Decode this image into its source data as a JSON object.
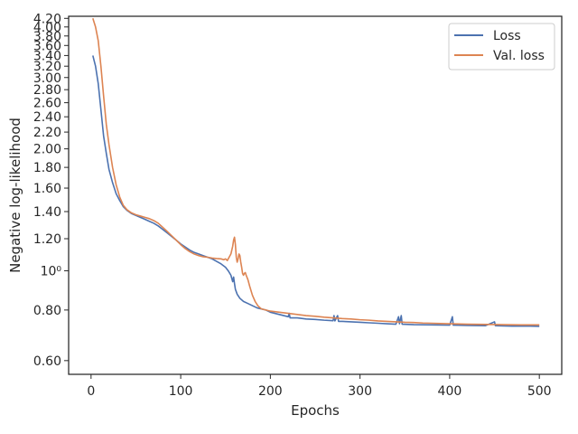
{
  "chart_data": {
    "type": "line",
    "title": "",
    "xlabel": "Epochs",
    "ylabel": "Negative log-likelihood",
    "y_scale": "log",
    "xlim": [
      -25,
      525
    ],
    "ylim": [
      0.555,
      4.25
    ],
    "grid": false,
    "legend_position": "top-right",
    "x_ticks": [
      0,
      100,
      200,
      300,
      400,
      500
    ],
    "y_ticks": [
      {
        "value": 0.6,
        "label": "0.60"
      },
      {
        "value": 0.8,
        "label": "0.80"
      },
      {
        "value": 1.0,
        "label": "10⁰"
      },
      {
        "value": 1.2,
        "label": "1.20"
      },
      {
        "value": 1.4,
        "label": "1.40"
      },
      {
        "value": 1.6,
        "label": "1.60"
      },
      {
        "value": 1.8,
        "label": "1.80"
      },
      {
        "value": 2.0,
        "label": "2.00"
      },
      {
        "value": 2.2,
        "label": "2.20"
      },
      {
        "value": 2.4,
        "label": "2.40"
      },
      {
        "value": 2.6,
        "label": "2.60"
      },
      {
        "value": 2.8,
        "label": "2.80"
      },
      {
        "value": 3.0,
        "label": "3.00"
      },
      {
        "value": 3.2,
        "label": "3.20"
      },
      {
        "value": 3.4,
        "label": "3.40"
      },
      {
        "value": 3.6,
        "label": "3.60"
      },
      {
        "value": 3.8,
        "label": "3.80"
      },
      {
        "value": 4.0,
        "label": "4.00"
      },
      {
        "value": 4.2,
        "label": "4.20"
      }
    ],
    "series": [
      {
        "name": "Loss",
        "color": "#4c72b0",
        "points": [
          [
            2,
            3.4
          ],
          [
            5,
            3.2
          ],
          [
            8,
            2.9
          ],
          [
            11,
            2.5
          ],
          [
            14,
            2.15
          ],
          [
            17,
            1.95
          ],
          [
            20,
            1.78
          ],
          [
            24,
            1.65
          ],
          [
            28,
            1.55
          ],
          [
            32,
            1.49
          ],
          [
            36,
            1.44
          ],
          [
            40,
            1.41
          ],
          [
            45,
            1.385
          ],
          [
            50,
            1.37
          ],
          [
            55,
            1.355
          ],
          [
            60,
            1.34
          ],
          [
            65,
            1.325
          ],
          [
            70,
            1.31
          ],
          [
            75,
            1.29
          ],
          [
            80,
            1.265
          ],
          [
            85,
            1.24
          ],
          [
            90,
            1.215
          ],
          [
            95,
            1.19
          ],
          [
            100,
            1.165
          ],
          [
            105,
            1.145
          ],
          [
            110,
            1.125
          ],
          [
            115,
            1.11
          ],
          [
            120,
            1.1
          ],
          [
            125,
            1.09
          ],
          [
            130,
            1.08
          ],
          [
            135,
            1.07
          ],
          [
            140,
            1.055
          ],
          [
            145,
            1.04
          ],
          [
            150,
            1.02
          ],
          [
            153,
            1.0
          ],
          [
            156,
            0.975
          ],
          [
            158,
            0.94
          ],
          [
            159,
            0.965
          ],
          [
            160,
            0.93
          ],
          [
            161,
            0.9
          ],
          [
            163,
            0.875
          ],
          [
            166,
            0.855
          ],
          [
            170,
            0.84
          ],
          [
            175,
            0.83
          ],
          [
            180,
            0.82
          ],
          [
            185,
            0.81
          ],
          [
            190,
            0.805
          ],
          [
            195,
            0.8
          ],
          [
            200,
            0.79
          ],
          [
            205,
            0.785
          ],
          [
            210,
            0.78
          ],
          [
            215,
            0.775
          ],
          [
            220,
            0.77
          ],
          [
            221,
            0.785
          ],
          [
            222,
            0.765
          ],
          [
            230,
            0.765
          ],
          [
            240,
            0.76
          ],
          [
            250,
            0.758
          ],
          [
            260,
            0.755
          ],
          [
            270,
            0.753
          ],
          [
            271,
            0.775
          ],
          [
            272,
            0.752
          ],
          [
            275,
            0.775
          ],
          [
            276,
            0.75
          ],
          [
            280,
            0.75
          ],
          [
            290,
            0.748
          ],
          [
            300,
            0.746
          ],
          [
            310,
            0.744
          ],
          [
            320,
            0.742
          ],
          [
            330,
            0.74
          ],
          [
            340,
            0.738
          ],
          [
            343,
            0.77
          ],
          [
            344,
            0.74
          ],
          [
            346,
            0.775
          ],
          [
            347,
            0.738
          ],
          [
            360,
            0.736
          ],
          [
            380,
            0.735
          ],
          [
            400,
            0.734
          ],
          [
            403,
            0.77
          ],
          [
            404,
            0.734
          ],
          [
            420,
            0.733
          ],
          [
            440,
            0.732
          ],
          [
            450,
            0.748
          ],
          [
            451,
            0.732
          ],
          [
            460,
            0.731
          ],
          [
            470,
            0.73
          ],
          [
            480,
            0.73
          ],
          [
            490,
            0.73
          ],
          [
            500,
            0.729
          ]
        ]
      },
      {
        "name": "Val. loss",
        "color": "#dd8452",
        "points": [
          [
            2,
            4.2
          ],
          [
            5,
            4.0
          ],
          [
            8,
            3.7
          ],
          [
            11,
            3.2
          ],
          [
            14,
            2.7
          ],
          [
            17,
            2.3
          ],
          [
            20,
            2.05
          ],
          [
            24,
            1.8
          ],
          [
            28,
            1.63
          ],
          [
            32,
            1.52
          ],
          [
            36,
            1.45
          ],
          [
            40,
            1.415
          ],
          [
            45,
            1.39
          ],
          [
            50,
            1.375
          ],
          [
            55,
            1.365
          ],
          [
            60,
            1.355
          ],
          [
            65,
            1.345
          ],
          [
            70,
            1.33
          ],
          [
            75,
            1.31
          ],
          [
            80,
            1.28
          ],
          [
            85,
            1.25
          ],
          [
            90,
            1.22
          ],
          [
            95,
            1.19
          ],
          [
            100,
            1.16
          ],
          [
            105,
            1.135
          ],
          [
            110,
            1.115
          ],
          [
            115,
            1.1
          ],
          [
            120,
            1.09
          ],
          [
            125,
            1.083
          ],
          [
            130,
            1.08
          ],
          [
            135,
            1.075
          ],
          [
            140,
            1.072
          ],
          [
            145,
            1.07
          ],
          [
            148,
            1.065
          ],
          [
            150,
            1.07
          ],
          [
            152,
            1.06
          ],
          [
            154,
            1.08
          ],
          [
            156,
            1.1
          ],
          [
            158,
            1.15
          ],
          [
            159,
            1.19
          ],
          [
            160,
            1.21
          ],
          [
            161,
            1.16
          ],
          [
            162,
            1.08
          ],
          [
            163,
            1.05
          ],
          [
            164,
            1.07
          ],
          [
            165,
            1.1
          ],
          [
            166,
            1.09
          ],
          [
            167,
            1.05
          ],
          [
            168,
            1.02
          ],
          [
            169,
            0.985
          ],
          [
            170,
            0.975
          ],
          [
            171,
            0.985
          ],
          [
            172,
            0.99
          ],
          [
            173,
            0.975
          ],
          [
            175,
            0.95
          ],
          [
            177,
            0.915
          ],
          [
            180,
            0.87
          ],
          [
            183,
            0.84
          ],
          [
            186,
            0.82
          ],
          [
            190,
            0.805
          ],
          [
            195,
            0.8
          ],
          [
            200,
            0.795
          ],
          [
            210,
            0.79
          ],
          [
            220,
            0.785
          ],
          [
            230,
            0.78
          ],
          [
            240,
            0.775
          ],
          [
            250,
            0.772
          ],
          [
            260,
            0.768
          ],
          [
            270,
            0.765
          ],
          [
            280,
            0.762
          ],
          [
            290,
            0.76
          ],
          [
            300,
            0.757
          ],
          [
            310,
            0.755
          ],
          [
            320,
            0.752
          ],
          [
            330,
            0.75
          ],
          [
            340,
            0.748
          ],
          [
            350,
            0.746
          ],
          [
            360,
            0.745
          ],
          [
            370,
            0.743
          ],
          [
            380,
            0.742
          ],
          [
            390,
            0.741
          ],
          [
            400,
            0.74
          ],
          [
            420,
            0.738
          ],
          [
            440,
            0.737
          ],
          [
            460,
            0.736
          ],
          [
            480,
            0.735
          ],
          [
            500,
            0.735
          ]
        ]
      }
    ]
  }
}
